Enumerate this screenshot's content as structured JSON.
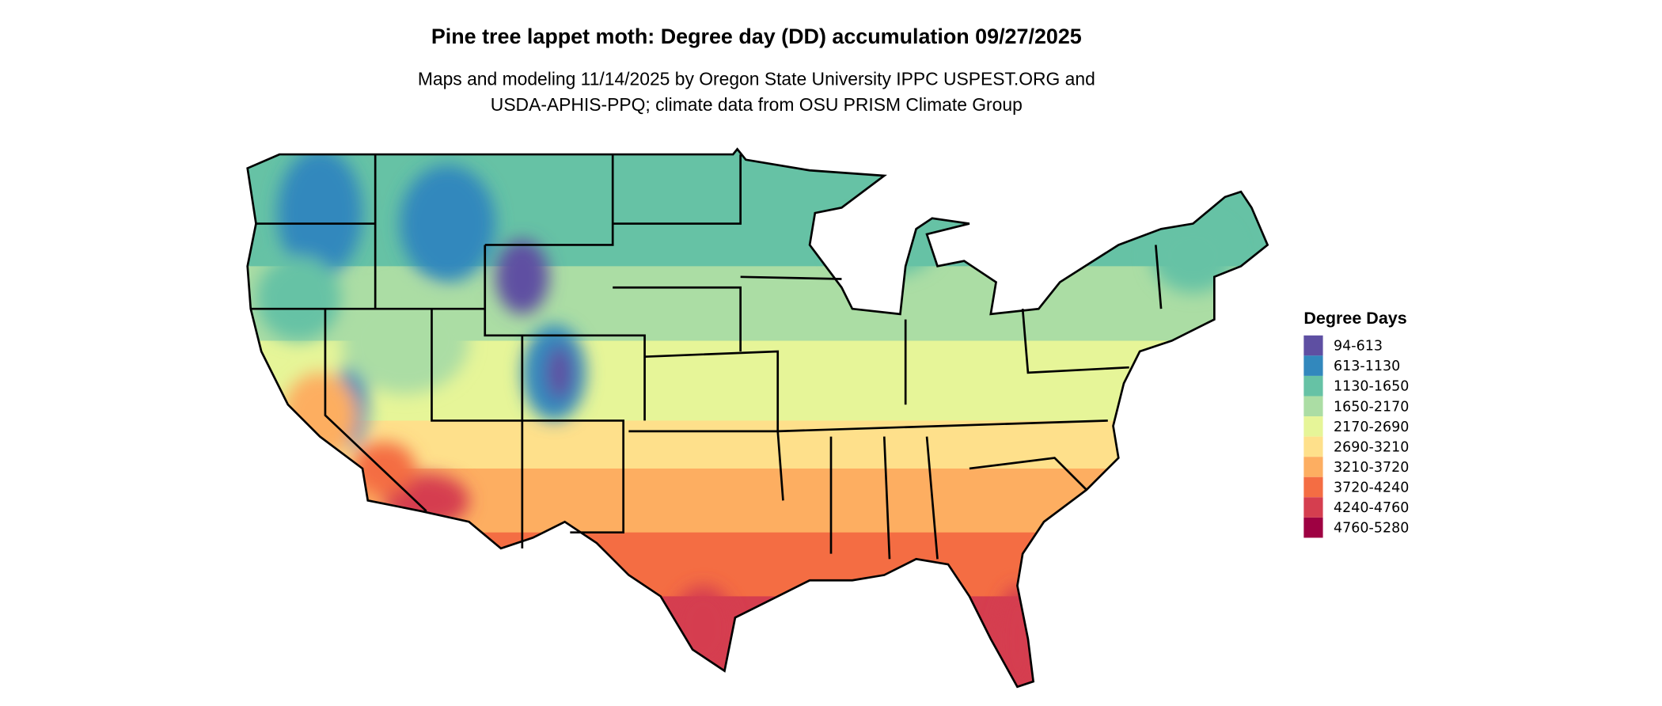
{
  "title": "Pine tree lappet moth: Degree day (DD) accumulation 09/27/2025",
  "subtitle_line1": "Maps and modeling 11/14/2025 by Oregon State University IPPC USPEST.ORG and",
  "subtitle_line2": "USDA-APHIS-PPQ; climate data from OSU PRISM Climate Group",
  "legend": {
    "title": "Degree Days",
    "items": [
      {
        "label": "94-613",
        "color": "#5e4fa2"
      },
      {
        "label": "613-1130",
        "color": "#3288bd"
      },
      {
        "label": "1130-1650",
        "color": "#66c2a5"
      },
      {
        "label": "1650-2170",
        "color": "#abdda4"
      },
      {
        "label": "2170-2690",
        "color": "#e6f598"
      },
      {
        "label": "2690-3210",
        "color": "#fee08b"
      },
      {
        "label": "3210-3720",
        "color": "#fdae61"
      },
      {
        "label": "3720-4240",
        "color": "#f46d43"
      },
      {
        "label": "4240-4760",
        "color": "#d53e4f"
      },
      {
        "label": "4760-5280",
        "color": "#9e0142"
      }
    ]
  }
}
